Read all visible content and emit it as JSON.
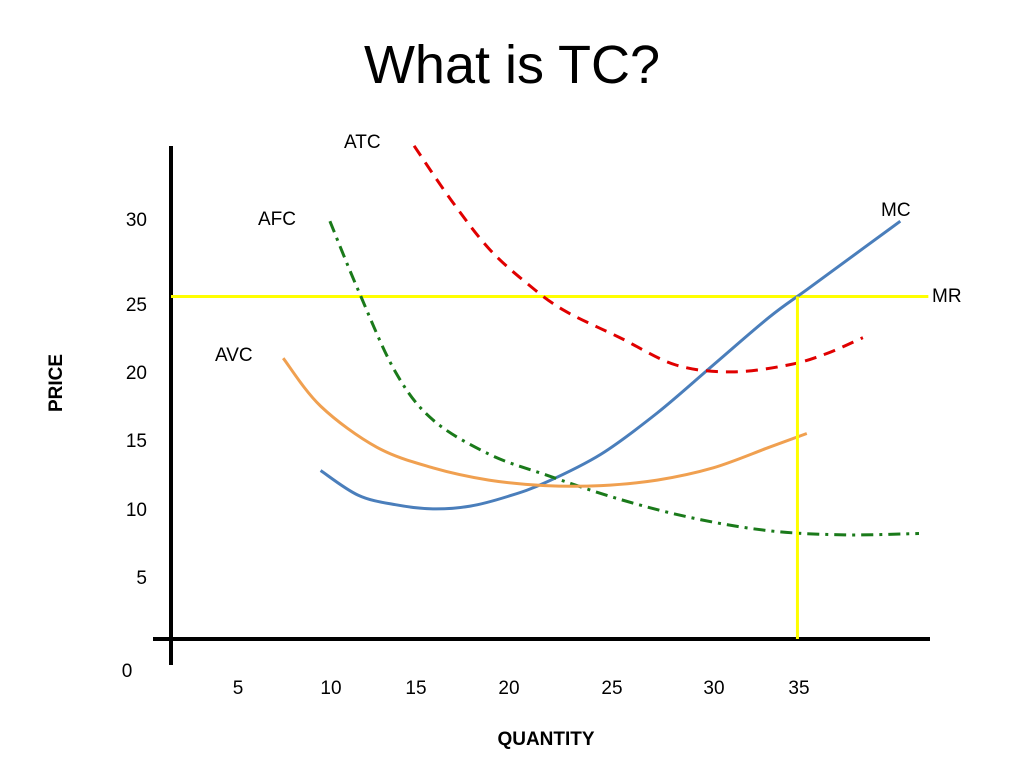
{
  "title": "What is TC?",
  "chart_data": {
    "type": "line",
    "xlabel": "QUANTITY",
    "ylabel": "PRICE",
    "origin_label": "0",
    "x_ticks": [
      "5",
      "10",
      "15",
      "20",
      "25",
      "30",
      "35"
    ],
    "y_ticks": [
      "5",
      "10",
      "15",
      "20",
      "25",
      "30"
    ],
    "series": [
      {
        "name": "MC",
        "color": "#4a7ebb",
        "dash": "solid",
        "points": [
          [
            8,
            12.3
          ],
          [
            10,
            10.5
          ],
          [
            12,
            9.8
          ],
          [
            14,
            9.5
          ],
          [
            16,
            9.7
          ],
          [
            18,
            10.4
          ],
          [
            20,
            11.4
          ],
          [
            23,
            13.5
          ],
          [
            26,
            16.5
          ],
          [
            29,
            20
          ],
          [
            32,
            23.5
          ],
          [
            34,
            25.5
          ],
          [
            37,
            28.5
          ],
          [
            39,
            30.5
          ]
        ]
      },
      {
        "name": "ATC",
        "color": "#e00000",
        "dash": "dashed",
        "points": [
          [
            13,
            36
          ],
          [
            15,
            32
          ],
          [
            17,
            28.5
          ],
          [
            19,
            26
          ],
          [
            21,
            24
          ],
          [
            24,
            22
          ],
          [
            27,
            20
          ],
          [
            30,
            19.5
          ],
          [
            33,
            20
          ],
          [
            35,
            20.8
          ],
          [
            37,
            22
          ]
        ]
      },
      {
        "name": "AFC",
        "color": "#1a7a1a",
        "dash": "dash-dot",
        "points": [
          [
            8.5,
            30.5
          ],
          [
            10,
            25.5
          ],
          [
            12,
            19.5
          ],
          [
            14,
            16
          ],
          [
            17,
            13.5
          ],
          [
            20,
            12
          ],
          [
            24,
            10.2
          ],
          [
            28,
            8.8
          ],
          [
            32,
            7.9
          ],
          [
            36,
            7.6
          ],
          [
            40,
            7.7
          ]
        ]
      },
      {
        "name": "AVC",
        "color": "#f0a050",
        "dash": "solid",
        "points": [
          [
            6,
            20.5
          ],
          [
            8,
            17
          ],
          [
            11,
            14
          ],
          [
            14,
            12.5
          ],
          [
            17,
            11.6
          ],
          [
            20,
            11.2
          ],
          [
            23,
            11.2
          ],
          [
            26,
            11.6
          ],
          [
            29,
            12.5
          ],
          [
            32,
            14
          ],
          [
            34,
            15
          ]
        ]
      },
      {
        "name": "MR",
        "color": "#ffff00",
        "dash": "solid",
        "points": [
          [
            0,
            25
          ],
          [
            40.5,
            25
          ]
        ]
      }
    ],
    "annotations": [
      {
        "type": "vertical_line",
        "color": "#ffff00",
        "x": 33.5,
        "y_from": 0,
        "y_to": 25
      }
    ]
  }
}
